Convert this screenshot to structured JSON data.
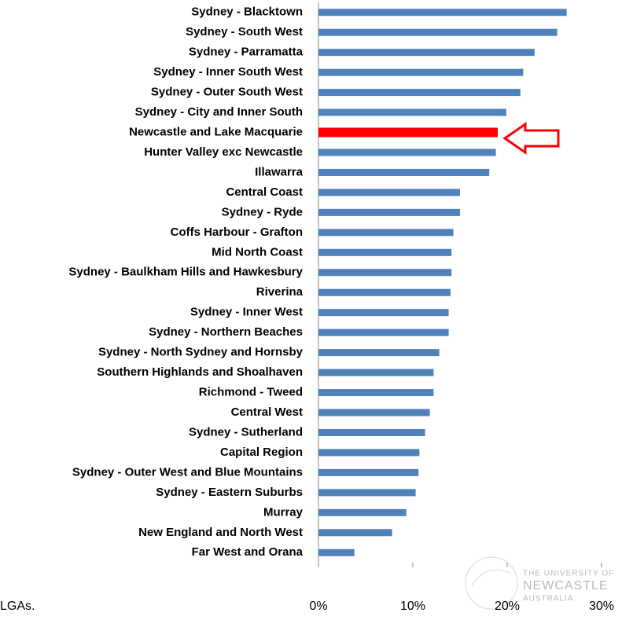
{
  "chart_data": {
    "type": "bar",
    "categories": [
      "Sydney - Blacktown",
      "Sydney - South West",
      "Sydney - Parramatta",
      "Sydney - Inner South West",
      "Sydney - Outer South West",
      "Sydney - City and Inner South",
      "Newcastle and Lake Macquarie",
      "Hunter Valley exc Newcastle",
      "Illawarra",
      "Central Coast",
      "Sydney - Ryde",
      "Coffs Harbour - Grafton",
      "Mid North Coast",
      "Sydney - Baulkham Hills and Hawkesbury",
      "Riverina",
      "Sydney - Inner West",
      "Sydney - Northern Beaches",
      "Sydney - North Sydney and Hornsby",
      "Southern Highlands and Shoalhaven",
      "Richmond - Tweed",
      "Central West",
      "Sydney - Sutherland",
      "Capital Region",
      "Sydney - Outer West and Blue Mountains",
      "Sydney - Eastern Suburbs",
      "Murray",
      "New England and North West",
      "Far West and Orana"
    ],
    "values": [
      26.3,
      25.3,
      22.9,
      21.7,
      21.4,
      19.9,
      19.0,
      18.8,
      18.1,
      15.0,
      15.0,
      14.3,
      14.1,
      14.1,
      14.0,
      13.8,
      13.8,
      12.8,
      12.2,
      12.2,
      11.8,
      11.3,
      10.7,
      10.6,
      10.3,
      9.3,
      7.8,
      3.8
    ],
    "colors": [
      "#4f81bd",
      "#4f81bd",
      "#4f81bd",
      "#4f81bd",
      "#4f81bd",
      "#4f81bd",
      "#ff0000",
      "#4f81bd",
      "#4f81bd",
      "#4f81bd",
      "#4f81bd",
      "#4f81bd",
      "#4f81bd",
      "#4f81bd",
      "#4f81bd",
      "#4f81bd",
      "#4f81bd",
      "#4f81bd",
      "#4f81bd",
      "#4f81bd",
      "#4f81bd",
      "#4f81bd",
      "#4f81bd",
      "#4f81bd",
      "#4f81bd",
      "#4f81bd",
      "#4f81bd",
      "#4f81bd"
    ],
    "xlim": [
      0,
      30
    ],
    "xticks": [
      {
        "value": 0,
        "label": "0%"
      },
      {
        "value": 10,
        "label": "10%"
      },
      {
        "value": 20,
        "label": "20%"
      },
      {
        "value": 30,
        "label": "30%"
      }
    ],
    "footnote": "LGAs.",
    "watermark": [
      "THE UNIVERSITY OF",
      "NEWCASTLE",
      "AUSTRALIA"
    ]
  }
}
